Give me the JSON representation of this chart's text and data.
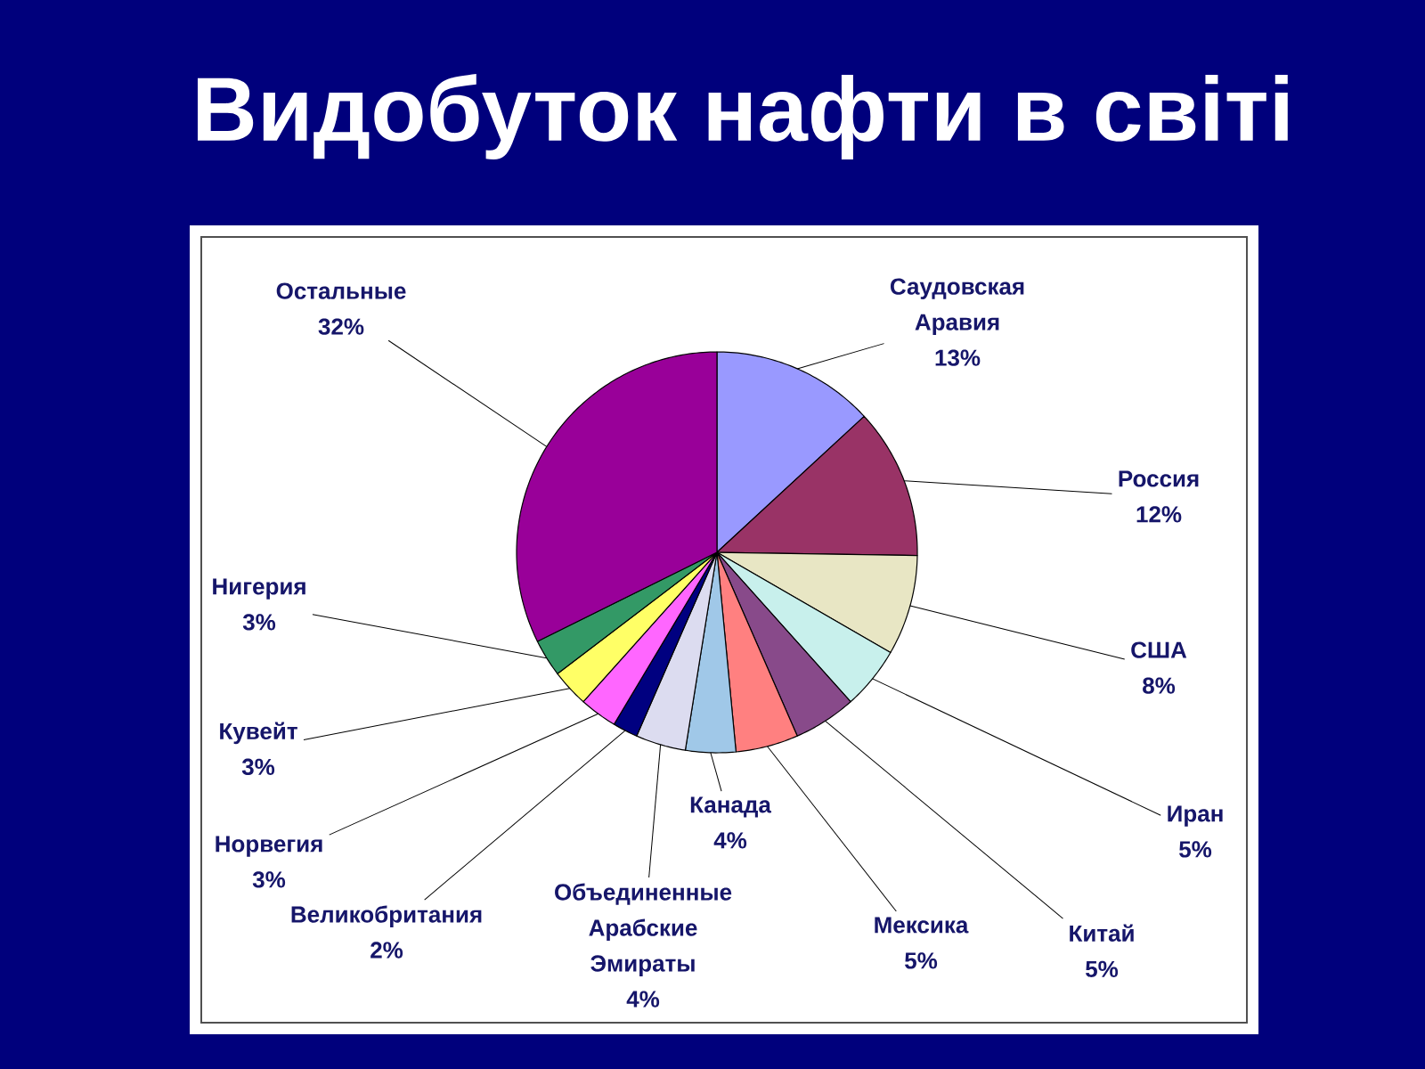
{
  "chart_data": {
    "type": "pie",
    "title": "Видобуток нафти в світі",
    "categories": [
      "Саудовская Аравия",
      "Россия",
      "США",
      "Иран",
      "Китай",
      "Мексика",
      "Канада",
      "Объединенные Арабские Эмираты",
      "Великобритания",
      "Норвегия",
      "Кувейт",
      "Нигерия",
      "Остальные"
    ],
    "values": [
      13,
      12,
      8,
      5,
      5,
      5,
      4,
      4,
      2,
      3,
      3,
      3,
      32
    ],
    "value_labels": [
      "13%",
      "12%",
      "8%",
      "5%",
      "5%",
      "5%",
      "4%",
      "4%",
      "2%",
      "3%",
      "3%",
      "3%",
      "32%"
    ],
    "colors": [
      "#9999ff",
      "#993366",
      "#e8e6c4",
      "#c8f0ec",
      "#884a8a",
      "#ff8080",
      "#a0c8e8",
      "#dcdcf0",
      "#000080",
      "#ff66ff",
      "#ffff66",
      "#339966",
      "#990099"
    ]
  }
}
